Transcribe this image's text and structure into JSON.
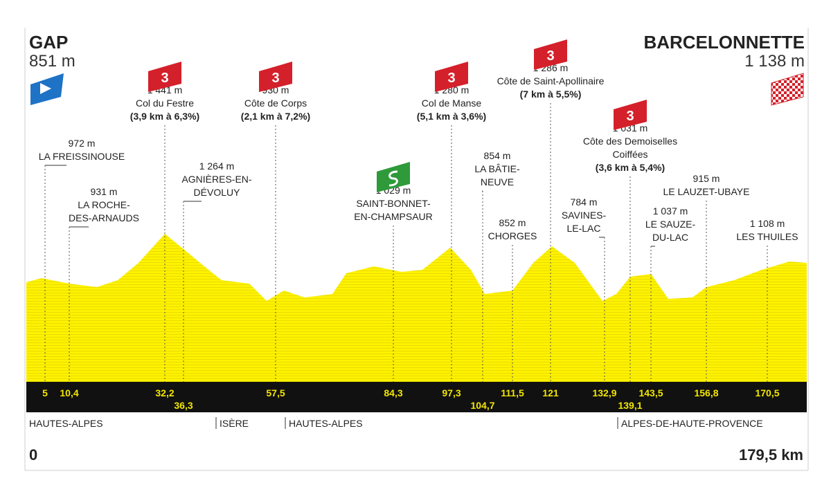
{
  "start": {
    "name": "GAP",
    "altitude": "851 m",
    "km": "0"
  },
  "finish": {
    "name": "BARCELONNETTE",
    "altitude": "1 138 m",
    "km": "179,5 km"
  },
  "waypoints": [
    {
      "km": "5",
      "altitude": "972 m",
      "name": [
        "LA FREISSINOUSE"
      ]
    },
    {
      "km": "10,4",
      "altitude": "931 m",
      "name": [
        "LA ROCHE-",
        "DES-ARNAUDS"
      ]
    },
    {
      "km": "32,2",
      "category": "3",
      "altitude": "1 441 m",
      "name": [
        "Col du Festre"
      ],
      "detail": "(3,9 km à 6,3%)"
    },
    {
      "km": "36,3",
      "altitude": "1 264 m",
      "name": [
        "AGNIÈRES-EN-",
        "DÉVOLUY"
      ]
    },
    {
      "km": "57,5",
      "category": "3",
      "altitude": "930 m",
      "name": [
        "Côte de Corps"
      ],
      "detail": "(2,1 km à 7,2%)"
    },
    {
      "km": "84,3",
      "altitude": "1 029 m",
      "name": [
        "SAINT-BONNET-",
        "EN-CHAMPSAUR"
      ]
    },
    {
      "km": "97,3",
      "category": "3",
      "altitude": "1 280 m",
      "name": [
        "Col de Manse"
      ],
      "detail": "(5,1 km à 3,6%)"
    },
    {
      "km": "104,7",
      "altitude": "854 m",
      "name": [
        "LA BÂTIE-",
        "NEUVE"
      ]
    },
    {
      "km": "111,5",
      "altitude": "852 m",
      "name": [
        "CHORGES"
      ]
    },
    {
      "km": "121",
      "category": "3",
      "altitude": "1 286 m",
      "name": [
        "Côte de Saint-Apollinaire"
      ],
      "detail": "(7 km à 5,5%)"
    },
    {
      "km": "132,9",
      "altitude": "784 m",
      "name": [
        "SAVINES-",
        "LE-LAC"
      ]
    },
    {
      "km": "139,1",
      "category": "3",
      "altitude": "1 031 m",
      "name": [
        "Côte des Demoiselles",
        "Coiffées"
      ],
      "detail": "(3,6 km à 5,4%)"
    },
    {
      "km": "143,5",
      "altitude": "1 037 m",
      "name": [
        "LE SAUZE-",
        "DU-LAC"
      ]
    },
    {
      "km": "156,8",
      "altitude": "915 m",
      "name": [
        "LE LAUZET-UBAYE"
      ]
    },
    {
      "km": "170,5",
      "altitude": "1 108 m",
      "name": [
        "LES THUILES"
      ]
    }
  ],
  "regions": [
    "HAUTES-ALPES",
    "ISÈRE",
    "HAUTES-ALPES",
    "ALPES-DE-HAUTE-PROVENCE"
  ]
}
